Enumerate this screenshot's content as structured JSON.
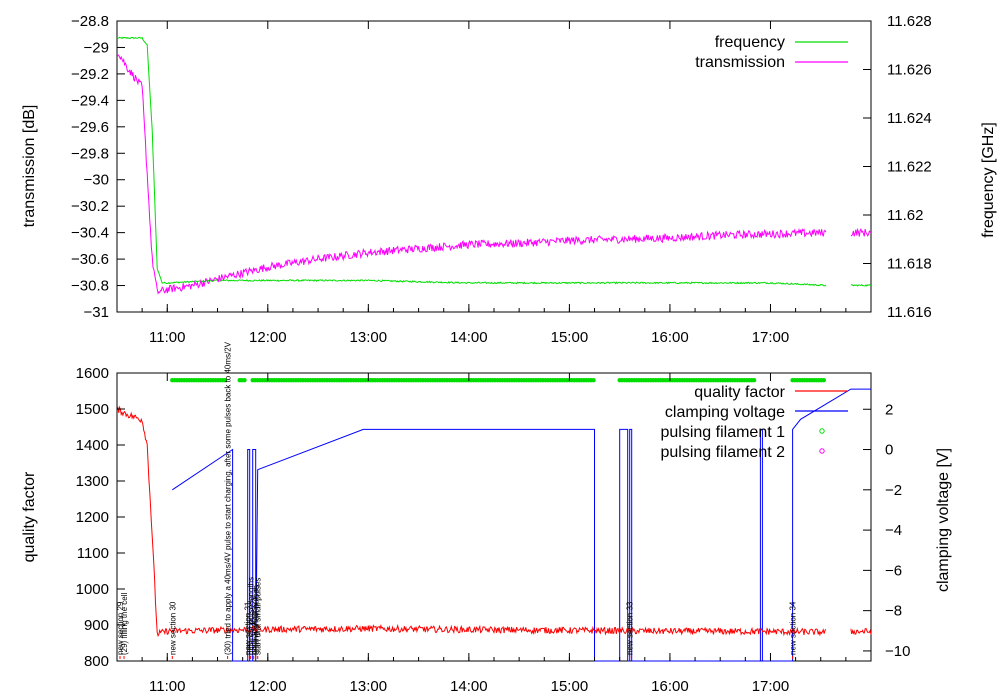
{
  "chart_data": [
    {
      "type": "line",
      "xlabel": "",
      "x_ticks": [
        "11:00",
        "12:00",
        "13:00",
        "14:00",
        "15:00",
        "16:00",
        "17:00"
      ],
      "x_tick_hours": [
        11,
        12,
        13,
        14,
        15,
        16,
        17
      ],
      "xlim_hours": [
        10.5,
        18.0
      ],
      "ylabel": "transmission [dB]",
      "ylim": [
        -31,
        -28.8
      ],
      "y_ticks": [
        "-28.8",
        "-29",
        "-29.2",
        "-29.4",
        "-29.6",
        "-29.8",
        "-30",
        "-30.2",
        "-30.4",
        "-30.6",
        "-30.8",
        "-31"
      ],
      "y2label": "frequency [GHz]",
      "y2lim": [
        11.616,
        11.628
      ],
      "y2_ticks": [
        "11.628",
        "11.626",
        "11.624",
        "11.622",
        "11.62",
        "11.618",
        "11.616"
      ],
      "legend_position": "top-right",
      "grid": false,
      "series": [
        {
          "name": "frequency",
          "axis": "right",
          "color": "#00dd00",
          "x": [
            10.5,
            10.75,
            10.8,
            10.85,
            10.9,
            10.95,
            11.0,
            11.5,
            12.0,
            13.0,
            14.0,
            15.0,
            16.0,
            17.0,
            17.55,
            17.8,
            18.0
          ],
          "y": [
            11.6273,
            11.6273,
            11.627,
            11.6235,
            11.6178,
            11.6172,
            11.6172,
            11.6173,
            11.6173,
            11.6173,
            11.6172,
            11.6172,
            11.6172,
            11.6172,
            11.6171,
            11.6171,
            11.6171
          ],
          "gap_after_x": 17.55
        },
        {
          "name": "transmission",
          "axis": "left",
          "color": "#ff00ff",
          "x": [
            10.5,
            10.6,
            10.75,
            10.85,
            10.9,
            11.0,
            11.25,
            11.5,
            12.0,
            12.5,
            13.0,
            13.5,
            14.0,
            14.5,
            15.0,
            15.5,
            16.0,
            16.5,
            17.0,
            17.55,
            17.8,
            18.0
          ],
          "y": [
            -29.02,
            -29.15,
            -29.3,
            -30.6,
            -30.85,
            -30.83,
            -30.8,
            -30.75,
            -30.66,
            -30.6,
            -30.55,
            -30.52,
            -30.49,
            -30.48,
            -30.46,
            -30.45,
            -30.44,
            -30.42,
            -30.41,
            -30.4,
            -30.4,
            -30.4
          ],
          "gap_after_x": 17.55
        }
      ]
    },
    {
      "type": "line",
      "xlabel": "",
      "x_ticks": [
        "11:00",
        "12:00",
        "13:00",
        "14:00",
        "15:00",
        "16:00",
        "17:00"
      ],
      "x_tick_hours": [
        11,
        12,
        13,
        14,
        15,
        16,
        17
      ],
      "xlim_hours": [
        10.5,
        18.0
      ],
      "ylabel": "quality factor",
      "ylim": [
        800,
        1600
      ],
      "y_ticks": [
        "1600",
        "1500",
        "1400",
        "1300",
        "1200",
        "1100",
        "1000",
        "900",
        "800"
      ],
      "y2label": "clamping voltage [V]",
      "y2lim": [
        -10.5,
        3.8
      ],
      "y2_ticks": [
        "2",
        "0",
        "-2",
        "-4",
        "-6",
        "-8",
        "-10"
      ],
      "y2_tick_values": [
        2,
        0,
        -2,
        -4,
        -6,
        -8,
        -10
      ],
      "legend_position": "top-right",
      "grid": false,
      "series": [
        {
          "name": "quality factor",
          "axis": "left",
          "color": "#ff0000",
          "x": [
            10.5,
            10.6,
            10.75,
            10.8,
            10.85,
            10.9,
            11.0,
            12.0,
            13.0,
            14.0,
            15.0,
            16.0,
            17.0,
            17.55,
            17.8,
            18.0
          ],
          "y": [
            1500,
            1485,
            1470,
            1400,
            1150,
            875,
            883,
            888,
            890,
            887,
            885,
            883,
            882,
            880,
            882,
            882
          ],
          "gap_after_x": 17.55
        },
        {
          "name": "clamping voltage",
          "axis": "right",
          "color": "#0000ff",
          "x": [
            11.05,
            11.65,
            11.65,
            11.8,
            11.8,
            11.82,
            11.82,
            11.85,
            11.85,
            11.88,
            11.88,
            11.9,
            12.95,
            15.25,
            15.25,
            15.5,
            15.5,
            15.58,
            15.58,
            15.6,
            15.6,
            15.62,
            15.62,
            16.9,
            16.9,
            16.92,
            16.92,
            17.22,
            17.22,
            17.3,
            17.8,
            18.0
          ],
          "y": [
            -2,
            0,
            -10.5,
            -10.5,
            0,
            0,
            -10.5,
            -10.5,
            0,
            0,
            -10.5,
            -1,
            1,
            1,
            -10.5,
            -10.5,
            1,
            1,
            -10.5,
            -10.5,
            1,
            1,
            -10.5,
            -10.5,
            1,
            1,
            -10.5,
            -10.5,
            1,
            1.5,
            3.0,
            3.0
          ]
        },
        {
          "name": "pulsing filament 1",
          "axis": "top-band",
          "color": "#00dd00",
          "marker": "circle",
          "y_value": 1580,
          "intervals": [
            [
              11.05,
              11.58
            ],
            [
              11.72,
              11.78
            ],
            [
              11.85,
              15.25
            ],
            [
              15.5,
              16.85
            ],
            [
              17.22,
              17.55
            ]
          ]
        },
        {
          "name": "pulsing filament 2",
          "axis": "top-band",
          "color": "#ff00ff",
          "marker": "circle",
          "intervals": []
        }
      ],
      "annotations": [
        {
          "x": 10.53,
          "text": "new section 29"
        },
        {
          "x": 10.57,
          "text": "(29) filling the cell"
        },
        {
          "x": 11.05,
          "text": "new section 30"
        },
        {
          "x": 11.6,
          "text": "(30) tried to apply a 40ms/4V pulse to start charging, after some pulses back to 40ms/2V"
        },
        {
          "x": 11.8,
          "text": "new section 31"
        },
        {
          "x": 11.83,
          "text": "different pulse lengths"
        },
        {
          "x": 11.86,
          "text": "back to 40ms/2V"
        },
        {
          "x": 11.88,
          "text": "testing small pulses"
        },
        {
          "x": 11.9,
          "text": "start that small pulses"
        },
        {
          "x": 15.6,
          "text": "new section 33"
        },
        {
          "x": 17.22,
          "text": "new section 34"
        }
      ]
    }
  ]
}
